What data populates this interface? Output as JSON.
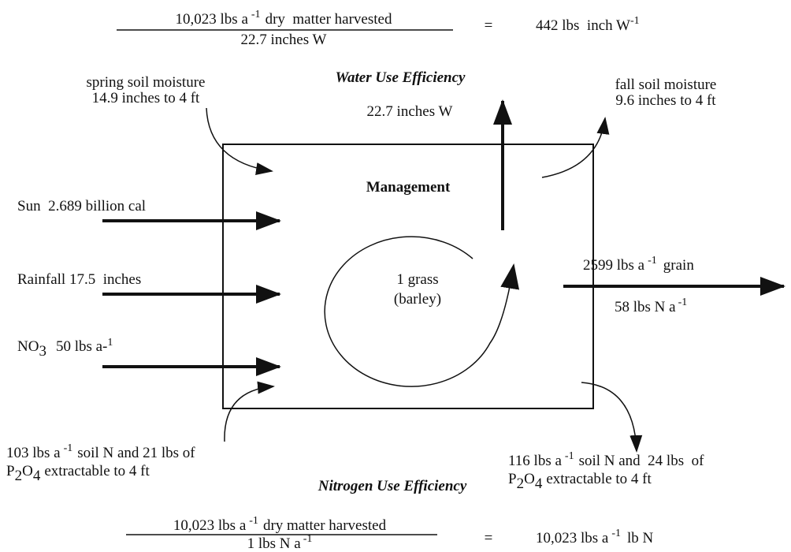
{
  "top_equation": {
    "numerator": [
      "10,023 lbs a",
      "-1",
      "dry  matter harvested"
    ],
    "denominator": "22.7 inches W",
    "equals": "=",
    "result": [
      "442 lbs  inch W",
      "-1"
    ]
  },
  "water_use_efficiency": {
    "title": "Water Use Efficiency",
    "value": "22.7 inches W"
  },
  "spring_soil_moisture": [
    "spring soil moisture",
    "14.9 inches to 4 ft"
  ],
  "fall_soil_moisture": [
    "fall soil moisture",
    "9.6 inches to 4 ft"
  ],
  "management": "Management",
  "inputs": {
    "sun": "Sun  2.689 billion cal",
    "rainfall": "Rainfall 17.5  inches",
    "nitrate": [
      "NO",
      "3",
      "50 lbs a-",
      "1"
    ]
  },
  "crop": [
    "1 grass",
    "(barley)"
  ],
  "output": {
    "grain": [
      "2599 lbs a",
      "-1",
      "grain"
    ],
    "nitrogen": [
      "58 lbs N a",
      "-1"
    ]
  },
  "spring_soil_nutrients": {
    "line1": [
      "103 lbs a",
      "-1",
      "soil N and 21 lbs of"
    ],
    "line2": [
      "P",
      "2",
      "O",
      "4",
      "extractable to 4 ft"
    ]
  },
  "fall_soil_nutrients": {
    "line1": [
      "116 lbs a",
      "-1",
      "soil N and  24 lbs  of"
    ],
    "line2": [
      "P",
      "2",
      "O",
      "4",
      "extractable to 4 ft"
    ]
  },
  "nitrogen_use_efficiency": {
    "title": "Nitrogen Use Efficiency"
  },
  "bottom_equation": {
    "numerator": [
      "10,023 lbs a",
      "-1",
      "dry matter harvested"
    ],
    "denominator": [
      "1 lbs N a",
      "-1"
    ],
    "equals": "=",
    "result": [
      "10,023 lbs a",
      "-1",
      "lb N"
    ]
  }
}
